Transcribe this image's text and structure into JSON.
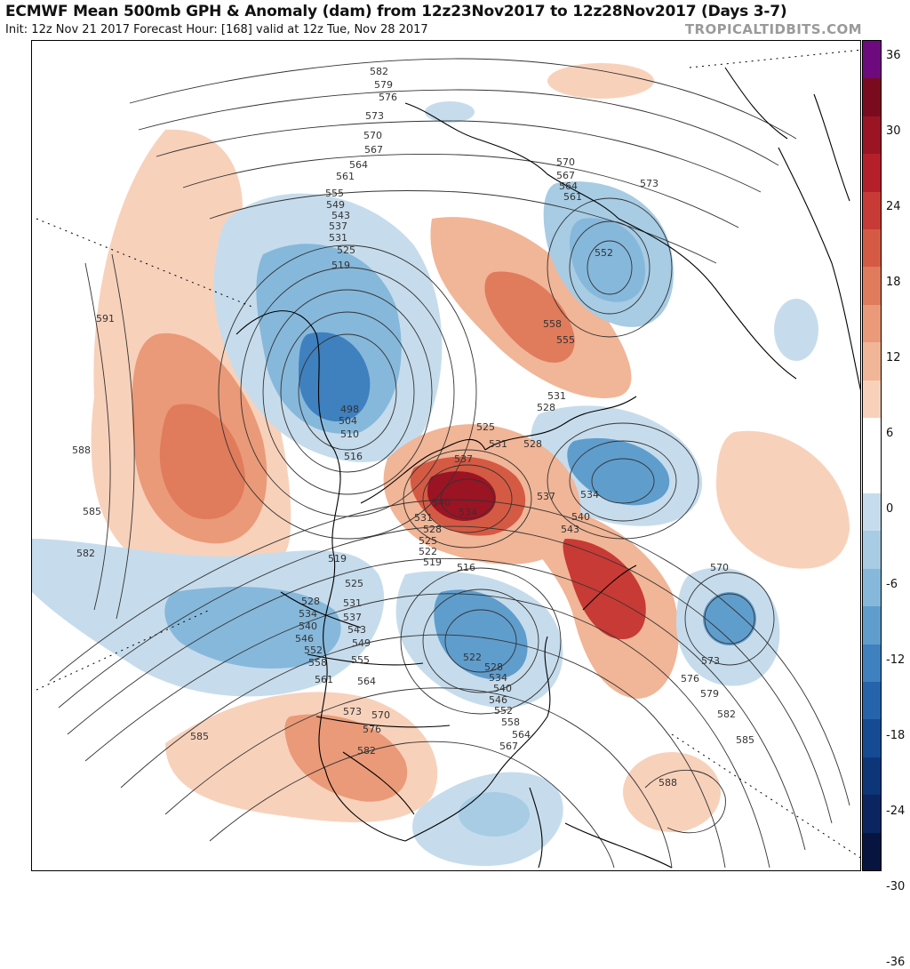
{
  "header": {
    "title": "ECMWF Mean 500mb GPH & Anomaly (dam) from 12z23Nov2017 to 12z28Nov2017 (Days 3-7)",
    "subtitle": "Init: 12z Nov 21 2017   Forecast Hour: [168]   valid at 12z Tue, Nov 28 2017",
    "brand": "TROPICALTIDBITS.COM"
  },
  "colorbar": {
    "ticks": [
      "36",
      "30",
      "24",
      "18",
      "12",
      "6",
      "0",
      "-6",
      "-12",
      "-18",
      "-24",
      "-30",
      "-36"
    ],
    "colors": [
      "#6d0a7e",
      "#7a0b1e",
      "#9a1424",
      "#b51f2a",
      "#c83a35",
      "#d55a44",
      "#e07b5b",
      "#ea9a78",
      "#f1b597",
      "#f8d1bb",
      "#ffffff",
      "#ffffff",
      "#c6dcec",
      "#a7cce4",
      "#86b8db",
      "#5f9dcd",
      "#3f80bf",
      "#2563ab",
      "#144b93",
      "#0d3679",
      "#0a255f",
      "#06143f"
    ]
  },
  "anomalies": [
    {
      "sign": "positive",
      "region": "northeast-pacific-ridge",
      "center_value": 12
    },
    {
      "sign": "positive",
      "region": "greenland-block",
      "center_value": 30
    },
    {
      "sign": "positive",
      "region": "north-atlantic",
      "center_value": 24
    },
    {
      "sign": "positive",
      "region": "siberia-arctic",
      "center_value": 18
    },
    {
      "sign": "positive",
      "region": "western-us",
      "center_value": 12
    },
    {
      "sign": "positive",
      "region": "subtropical-atlantic",
      "center_value": 6
    },
    {
      "sign": "negative",
      "region": "alaska-bering-low",
      "center_value": -24
    },
    {
      "sign": "negative",
      "region": "hudson-bay-trough",
      "center_value": -18
    },
    {
      "sign": "negative",
      "region": "scandinavia-low",
      "center_value": -18
    },
    {
      "sign": "negative",
      "region": "central-siberia",
      "center_value": -12
    },
    {
      "sign": "negative",
      "region": "eastern-atlantic-cutoff",
      "center_value": -18
    },
    {
      "sign": "negative",
      "region": "central-pacific",
      "center_value": -12
    },
    {
      "sign": "negative",
      "region": "gulf-of-mexico",
      "center_value": -12
    }
  ],
  "contour_labels": [
    "582",
    "579",
    "576",
    "573",
    "570",
    "567",
    "564",
    "561",
    "555",
    "549",
    "543",
    "537",
    "531",
    "525",
    "519",
    "498",
    "504",
    "510",
    "516",
    "591",
    "588",
    "585",
    "582",
    "570",
    "567",
    "564",
    "561",
    "552",
    "573",
    "558",
    "555",
    "531",
    "528",
    "525",
    "531",
    "528",
    "537",
    "534",
    "540",
    "543",
    "537",
    "540",
    "534",
    "531",
    "528",
    "525",
    "522",
    "519",
    "516",
    "519",
    "525",
    "528",
    "531",
    "534",
    "537",
    "540",
    "543",
    "546",
    "549",
    "552",
    "555",
    "558",
    "561",
    "564",
    "522",
    "528",
    "534",
    "540",
    "546",
    "552",
    "558",
    "564",
    "567",
    "573",
    "570",
    "576",
    "582",
    "585",
    "570",
    "573",
    "576",
    "579",
    "582",
    "585",
    "588"
  ]
}
